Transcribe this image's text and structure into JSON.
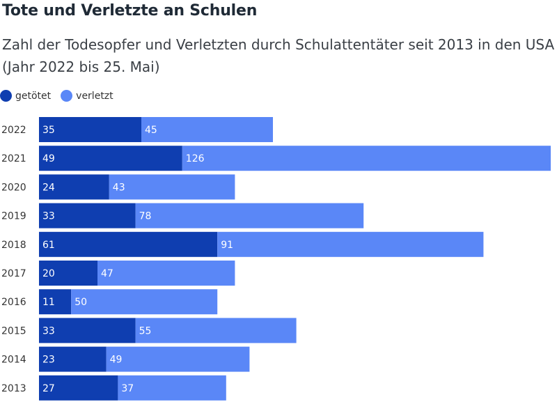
{
  "chart_data": {
    "type": "bar",
    "orientation": "horizontal",
    "stacked": true,
    "title": "Tote und Verletzte an Schulen",
    "subtitle": "Zahl der Todesopfer und Verletzten durch Schulattentäter seit 2013 in den USA (Jahr 2022 bis 25. Mai)",
    "categories": [
      "2022",
      "2021",
      "2020",
      "2019",
      "2018",
      "2017",
      "2016",
      "2015",
      "2014",
      "2013"
    ],
    "series": [
      {
        "name": "getötet",
        "color": "#0f3eb0",
        "values": [
          35,
          49,
          24,
          33,
          61,
          20,
          11,
          33,
          23,
          27
        ]
      },
      {
        "name": "verletzt",
        "color": "#5a87f7",
        "values": [
          45,
          126,
          43,
          78,
          91,
          47,
          50,
          55,
          49,
          37
        ]
      }
    ],
    "xlim": [
      0,
      175
    ],
    "grid": false,
    "legend_position": "top-left",
    "data_labels": true
  }
}
